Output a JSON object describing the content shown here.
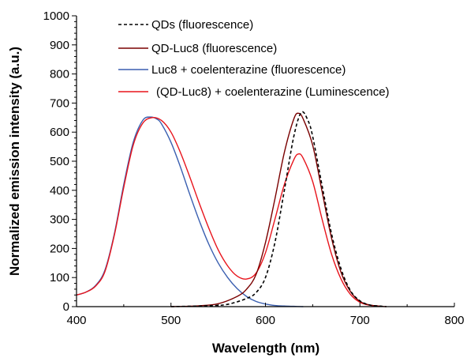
{
  "chart_data": {
    "type": "line",
    "title": "",
    "xlabel": "Wavelength (nm)",
    "ylabel": "Normalized emission intensity (a.u.)",
    "xlim": [
      400,
      800
    ],
    "ylim": [
      0,
      1000
    ],
    "x_ticks": [
      "400",
      "500",
      "600",
      "700",
      "800"
    ],
    "y_ticks": [
      "0",
      "100",
      "200",
      "300",
      "400",
      "500",
      "600",
      "700",
      "800",
      "900",
      "1000"
    ],
    "legend_position": "top-center",
    "series": [
      {
        "name": "QDs (fluorescence)",
        "color": "#000000",
        "style": "dashed",
        "x": [
          500,
          540,
          560,
          580,
          590,
          600,
          610,
          620,
          630,
          638,
          645,
          650,
          660,
          670,
          680,
          690,
          700,
          710,
          720,
          728
        ],
        "y": [
          0,
          3,
          8,
          28,
          48,
          100,
          220,
          400,
          585,
          668,
          640,
          585,
          415,
          250,
          130,
          55,
          20,
          6,
          2,
          0
        ]
      },
      {
        "name": "QD-Luc8 (fluorescence)",
        "color": "#7a0000",
        "style": "solid",
        "x": [
          500,
          530,
          550,
          570,
          580,
          590,
          600,
          610,
          620,
          630,
          635,
          640,
          650,
          660,
          670,
          680,
          690,
          700,
          710,
          720,
          728
        ],
        "y": [
          0,
          3,
          10,
          35,
          60,
          110,
          220,
          370,
          530,
          645,
          665,
          645,
          555,
          395,
          235,
          118,
          52,
          18,
          6,
          2,
          0
        ]
      },
      {
        "name": "Luc8 + coelenterazine (fluorescence)",
        "color": "#3a5fb0",
        "style": "solid",
        "x": [
          400,
          410,
          420,
          430,
          440,
          450,
          460,
          470,
          478,
          485,
          490,
          500,
          510,
          520,
          530,
          540,
          550,
          560,
          570,
          580,
          590,
          600,
          610,
          620,
          630,
          640
        ],
        "y": [
          40,
          50,
          72,
          125,
          250,
          420,
          565,
          640,
          652,
          645,
          628,
          565,
          480,
          385,
          295,
          215,
          150,
          100,
          62,
          35,
          18,
          9,
          4,
          2,
          1,
          0
        ]
      },
      {
        "name": "(QD-Luc8) + coelenterazine (Luminescence)",
        "color": "#e8141c",
        "style": "solid",
        "x": [
          400,
          410,
          420,
          430,
          440,
          450,
          460,
          470,
          480,
          490,
          500,
          510,
          520,
          530,
          540,
          550,
          560,
          570,
          580,
          590,
          600,
          610,
          620,
          630,
          635,
          640,
          650,
          660,
          670,
          680,
          690,
          700,
          710,
          720
        ],
        "y": [
          40,
          50,
          70,
          120,
          245,
          410,
          555,
          630,
          650,
          640,
          600,
          530,
          445,
          355,
          270,
          195,
          140,
          105,
          95,
          115,
          185,
          300,
          420,
          505,
          525,
          510,
          430,
          300,
          180,
          95,
          42,
          15,
          5,
          2
        ]
      }
    ]
  }
}
